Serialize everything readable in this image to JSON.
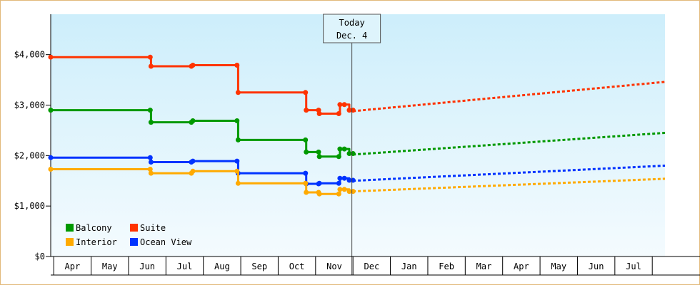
{
  "chart_data": {
    "type": "line",
    "title": "",
    "xlabel": "",
    "ylabel": "",
    "ylim": [
      0,
      4800
    ],
    "y_ticks": [
      0,
      1000,
      2000,
      3000,
      4000
    ],
    "y_tick_labels": [
      "$0",
      "$1,000",
      "$2,000",
      "$3,000",
      "$4,000"
    ],
    "x_months": [
      "Apr",
      "May",
      "Jun",
      "Jul",
      "Aug",
      "Sep",
      "Oct",
      "Nov",
      "Dec",
      "Jan",
      "Feb",
      "Mar",
      "Apr",
      "May",
      "Jun",
      "Jul"
    ],
    "x_range_month_index": [
      -0.08,
      16.34
    ],
    "grid": false,
    "legend_placement": "bottom-left",
    "today_marker": {
      "line1": "Today",
      "line2": "Dec. 4",
      "x": 7.97
    },
    "series": [
      {
        "name": "Suite",
        "color": "#ff3300",
        "step": true,
        "x": [
          -0.08,
          2.58,
          2.6,
          3.68,
          3.72,
          4.9,
          4.93,
          6.73,
          6.75,
          7.08,
          7.1,
          7.62,
          7.65,
          7.77,
          7.9,
          8.0
        ],
        "values": [
          3950,
          3950,
          3770,
          3770,
          3790,
          3790,
          3250,
          3250,
          2900,
          2900,
          2830,
          2830,
          3010,
          3010,
          2900,
          2900
        ],
        "projection": {
          "x": [
            8.0,
            16.34
          ],
          "values": [
            2880,
            3460
          ]
        }
      },
      {
        "name": "Balcony",
        "color": "#009900",
        "step": true,
        "x": [
          -0.08,
          2.58,
          2.6,
          3.68,
          3.72,
          4.9,
          4.93,
          6.73,
          6.75,
          7.08,
          7.1,
          7.62,
          7.65,
          7.77,
          7.9,
          8.0
        ],
        "values": [
          2900,
          2900,
          2660,
          2660,
          2690,
          2690,
          2310,
          2310,
          2070,
          2070,
          1980,
          1980,
          2130,
          2130,
          2040,
          2040
        ],
        "projection": {
          "x": [
            8.0,
            16.34
          ],
          "values": [
            2020,
            2450
          ]
        }
      },
      {
        "name": "Ocean View",
        "color": "#0033ff",
        "step": true,
        "x": [
          -0.08,
          2.58,
          2.6,
          3.68,
          3.72,
          4.9,
          4.93,
          6.73,
          6.75,
          7.08,
          7.1,
          7.62,
          7.65,
          7.77,
          7.9,
          8.0
        ],
        "values": [
          1960,
          1960,
          1870,
          1870,
          1890,
          1890,
          1650,
          1650,
          1440,
          1440,
          1450,
          1450,
          1550,
          1550,
          1510,
          1510
        ],
        "projection": {
          "x": [
            8.0,
            16.34
          ],
          "values": [
            1500,
            1800
          ]
        }
      },
      {
        "name": "Interior",
        "color": "#ffaa00",
        "step": true,
        "x": [
          -0.08,
          2.58,
          2.6,
          3.68,
          3.72,
          4.9,
          4.93,
          6.73,
          6.75,
          7.08,
          7.1,
          7.62,
          7.65,
          7.77,
          7.9,
          8.0
        ],
        "values": [
          1730,
          1730,
          1650,
          1650,
          1690,
          1690,
          1450,
          1450,
          1270,
          1270,
          1240,
          1240,
          1330,
          1330,
          1290,
          1290
        ],
        "projection": {
          "x": [
            8.0,
            16.34
          ],
          "values": [
            1290,
            1540
          ]
        }
      }
    ],
    "legend": [
      {
        "label": "Balcony",
        "color": "#009900"
      },
      {
        "label": "Suite",
        "color": "#ff3300"
      },
      {
        "label": "Interior",
        "color": "#ffaa00"
      },
      {
        "label": "Ocean View",
        "color": "#0033ff"
      }
    ]
  }
}
